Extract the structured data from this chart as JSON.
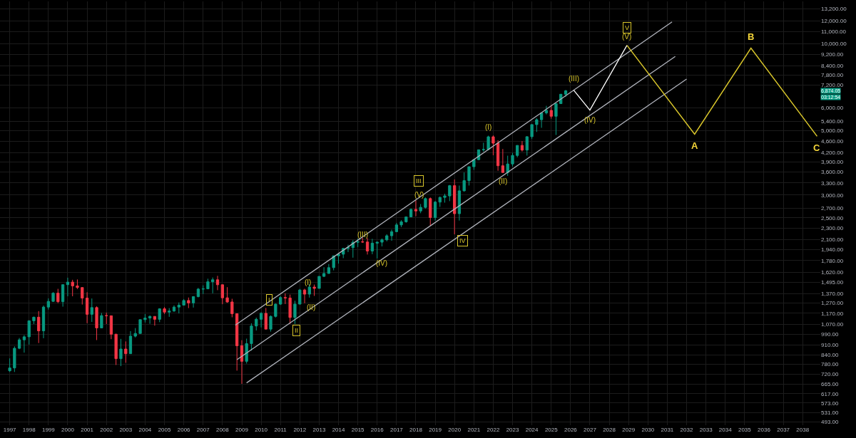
{
  "chart_data": {
    "type": "candlestick",
    "x": [
      "1997-01",
      "1997-04",
      "1997-07",
      "1997-10",
      "1998-01",
      "1998-04",
      "1998-07",
      "1998-10",
      "1999-01",
      "1999-04",
      "1999-07",
      "1999-10",
      "2000-01",
      "2000-04",
      "2000-07",
      "2000-10",
      "2001-01",
      "2001-04",
      "2001-07",
      "2001-10",
      "2002-01",
      "2002-04",
      "2002-07",
      "2002-10",
      "2003-01",
      "2003-04",
      "2003-07",
      "2003-10",
      "2004-01",
      "2004-04",
      "2004-07",
      "2004-10",
      "2005-01",
      "2005-04",
      "2005-07",
      "2005-10",
      "2006-01",
      "2006-04",
      "2006-07",
      "2006-10",
      "2007-01",
      "2007-04",
      "2007-07",
      "2007-10",
      "2008-01",
      "2008-04",
      "2008-07",
      "2008-10",
      "2009-01",
      "2009-04",
      "2009-07",
      "2009-10",
      "2010-01",
      "2010-04",
      "2010-07",
      "2010-10",
      "2011-01",
      "2011-04",
      "2011-07",
      "2011-10",
      "2012-01",
      "2012-04",
      "2012-07",
      "2012-10",
      "2013-01",
      "2013-04",
      "2013-07",
      "2013-10",
      "2014-01",
      "2014-04",
      "2014-07",
      "2014-10",
      "2015-01",
      "2015-04",
      "2015-07",
      "2015-10",
      "2016-01",
      "2016-04",
      "2016-07",
      "2016-10",
      "2017-01",
      "2017-04",
      "2017-07",
      "2017-10",
      "2018-01",
      "2018-04",
      "2018-07",
      "2018-10",
      "2019-01",
      "2019-04",
      "2019-07",
      "2019-10",
      "2020-01",
      "2020-04",
      "2020-07",
      "2020-10",
      "2021-01",
      "2021-04",
      "2021-07",
      "2021-10",
      "2022-01",
      "2022-04",
      "2022-07",
      "2022-10",
      "2023-01",
      "2023-04",
      "2023-07",
      "2023-10",
      "2024-01",
      "2024-04",
      "2024-07",
      "2024-10",
      "2025-01",
      "2025-04",
      "2025-07",
      "2025-10"
    ],
    "ohlc": [
      [
        740,
        817,
        733,
        757
      ],
      [
        757,
        899,
        733,
        885
      ],
      [
        885,
        961,
        879,
        947
      ],
      [
        947,
        983,
        855,
        970
      ],
      [
        970,
        1106,
        912,
        1102
      ],
      [
        1102,
        1139,
        1074,
        1134
      ],
      [
        1134,
        1190,
        923,
        1017
      ],
      [
        1017,
        1244,
        959,
        1229
      ],
      [
        1229,
        1317,
        1205,
        1286
      ],
      [
        1286,
        1383,
        1281,
        1373
      ],
      [
        1373,
        1421,
        1268,
        1283
      ],
      [
        1283,
        1473,
        1233,
        1469
      ],
      [
        1469,
        1553,
        1339,
        1499
      ],
      [
        1499,
        1527,
        1339,
        1455
      ],
      [
        1455,
        1531,
        1419,
        1436
      ],
      [
        1436,
        1436,
        1254,
        1320
      ],
      [
        1320,
        1383,
        1081,
        1160
      ],
      [
        1160,
        1316,
        1092,
        1224
      ],
      [
        1224,
        1236,
        945,
        1041
      ],
      [
        1041,
        1173,
        1040,
        1148
      ],
      [
        1148,
        1176,
        1074,
        1147
      ],
      [
        1147,
        1147,
        952,
        990
      ],
      [
        990,
        994,
        775,
        815
      ],
      [
        815,
        954,
        768,
        880
      ],
      [
        880,
        935,
        789,
        848
      ],
      [
        848,
        1015,
        847,
        975
      ],
      [
        975,
        1040,
        965,
        996
      ],
      [
        996,
        1112,
        996,
        1112
      ],
      [
        1112,
        1163,
        1087,
        1126
      ],
      [
        1126,
        1150,
        1076,
        1141
      ],
      [
        1141,
        1141,
        1060,
        1115
      ],
      [
        1115,
        1217,
        1090,
        1212
      ],
      [
        1212,
        1229,
        1163,
        1181
      ],
      [
        1181,
        1219,
        1137,
        1191
      ],
      [
        1191,
        1246,
        1183,
        1229
      ],
      [
        1229,
        1275,
        1168,
        1248
      ],
      [
        1248,
        1310,
        1245,
        1295
      ],
      [
        1295,
        1326,
        1219,
        1270
      ],
      [
        1270,
        1340,
        1224,
        1336
      ],
      [
        1336,
        1431,
        1327,
        1418
      ],
      [
        1418,
        1461,
        1364,
        1421
      ],
      [
        1421,
        1540,
        1417,
        1503
      ],
      [
        1503,
        1555,
        1371,
        1527
      ],
      [
        1527,
        1576,
        1406,
        1468
      ],
      [
        1468,
        1472,
        1257,
        1323
      ],
      [
        1323,
        1440,
        1272,
        1280
      ],
      [
        1280,
        1313,
        1133,
        1166
      ],
      [
        1166,
        1167,
        741,
        903
      ],
      [
        903,
        944,
        667,
        798
      ],
      [
        798,
        956,
        784,
        919
      ],
      [
        919,
        1080,
        869,
        1057
      ],
      [
        1057,
        1130,
        1020,
        1115
      ],
      [
        1115,
        1180,
        1045,
        1169
      ],
      [
        1169,
        1220,
        1031,
        1031
      ],
      [
        1031,
        1150,
        1011,
        1141
      ],
      [
        1141,
        1263,
        1131,
        1258
      ],
      [
        1258,
        1344,
        1250,
        1326
      ],
      [
        1326,
        1371,
        1259,
        1321
      ],
      [
        1321,
        1357,
        1075,
        1131
      ],
      [
        1131,
        1293,
        1074,
        1258
      ],
      [
        1258,
        1420,
        1258,
        1408
      ],
      [
        1408,
        1422,
        1267,
        1362
      ],
      [
        1362,
        1475,
        1325,
        1441
      ],
      [
        1441,
        1470,
        1343,
        1426
      ],
      [
        1426,
        1570,
        1426,
        1569
      ],
      [
        1569,
        1687,
        1560,
        1606
      ],
      [
        1606,
        1730,
        1604,
        1682
      ],
      [
        1682,
        1849,
        1646,
        1848
      ],
      [
        1848,
        1884,
        1737,
        1872
      ],
      [
        1872,
        1968,
        1814,
        1960
      ],
      [
        1960,
        2019,
        1904,
        1972
      ],
      [
        1972,
        2094,
        1821,
        2059
      ],
      [
        2059,
        2119,
        1981,
        2068
      ],
      [
        2068,
        2135,
        2048,
        2063
      ],
      [
        2063,
        2132,
        1867,
        1920
      ],
      [
        1920,
        2116,
        1872,
        2044
      ],
      [
        2044,
        2072,
        1810,
        2060
      ],
      [
        2060,
        2121,
        1992,
        2099
      ],
      [
        2099,
        2194,
        2074,
        2168
      ],
      [
        2168,
        2278,
        2084,
        2239
      ],
      [
        2239,
        2401,
        2233,
        2363
      ],
      [
        2363,
        2454,
        2322,
        2423
      ],
      [
        2423,
        2519,
        2406,
        2519
      ],
      [
        2519,
        2694,
        2519,
        2674
      ],
      [
        2674,
        2873,
        2533,
        2641
      ],
      [
        2641,
        2791,
        2594,
        2718
      ],
      [
        2718,
        2941,
        2692,
        2914
      ],
      [
        2914,
        2940,
        2347,
        2507
      ],
      [
        2507,
        2860,
        2444,
        2834
      ],
      [
        2834,
        2964,
        2729,
        2942
      ],
      [
        2942,
        3028,
        2822,
        2977
      ],
      [
        2977,
        3248,
        2856,
        3231
      ],
      [
        3231,
        3394,
        2192,
        2585
      ],
      [
        2585,
        3233,
        2447,
        3100
      ],
      [
        3100,
        3588,
        3080,
        3363
      ],
      [
        3363,
        3760,
        3234,
        3756
      ],
      [
        3756,
        3984,
        3662,
        3973
      ],
      [
        3973,
        4302,
        3954,
        4298
      ],
      [
        4298,
        4546,
        4233,
        4308
      ],
      [
        4308,
        4808,
        4278,
        4766
      ],
      [
        4766,
        4819,
        4115,
        4530
      ],
      [
        4530,
        4637,
        3637,
        3785
      ],
      [
        3785,
        4325,
        3584,
        3586
      ],
      [
        3586,
        4101,
        3492,
        3840
      ],
      [
        3840,
        4195,
        3764,
        4109
      ],
      [
        4109,
        4458,
        4048,
        4450
      ],
      [
        4450,
        4607,
        4238,
        4288
      ],
      [
        4288,
        4794,
        4104,
        4770
      ],
      [
        4770,
        5265,
        4683,
        5254
      ],
      [
        5254,
        5524,
        4954,
        5460
      ],
      [
        5460,
        5767,
        5120,
        5762
      ],
      [
        5762,
        6099,
        5696,
        5882
      ],
      [
        5882,
        6147,
        5505,
        5612
      ],
      [
        5612,
        6215,
        4835,
        6205
      ],
      [
        6205,
        6700,
        6200,
        6688
      ],
      [
        6688,
        6920,
        6551,
        6874.05
      ]
    ],
    "colors": [
      "#089981",
      "#089981",
      "#089981",
      "#089981",
      "#089981",
      "#089981",
      "#f23645",
      "#089981",
      "#089981",
      "#089981",
      "#f23645",
      "#089981",
      "#089981",
      "#f23645",
      "#f23645",
      "#f23645",
      "#f23645",
      "#089981",
      "#f23645",
      "#089981",
      "#f23645",
      "#f23645",
      "#f23645",
      "#089981",
      "#f23645",
      "#089981",
      "#089981",
      "#089981",
      "#089981",
      "#089981",
      "#f23645",
      "#089981",
      "#f23645",
      "#089981",
      "#089981",
      "#089981",
      "#089981",
      "#f23645",
      "#089981",
      "#089981",
      "#089981",
      "#089981",
      "#089981",
      "#f23645",
      "#f23645",
      "#f23645",
      "#f23645",
      "#f23645",
      "#f23645",
      "#089981",
      "#089981",
      "#089981",
      "#089981",
      "#f23645",
      "#089981",
      "#089981",
      "#089981",
      "#f23645",
      "#f23645",
      "#089981",
      "#089981",
      "#f23645",
      "#089981",
      "#f23645",
      "#089981",
      "#089981",
      "#089981",
      "#089981",
      "#089981",
      "#089981",
      "#089981",
      "#089981",
      "#089981",
      "#f23645",
      "#f23645",
      "#089981",
      "#089981",
      "#089981",
      "#089981",
      "#089981",
      "#089981",
      "#089981",
      "#089981",
      "#089981",
      "#f23645",
      "#089981",
      "#089981",
      "#f23645",
      "#089981",
      "#089981",
      "#089981",
      "#089981",
      "#f23645",
      "#089981",
      "#089981",
      "#089981",
      "#089981",
      "#089981",
      "#089981",
      "#089981",
      "#f23645",
      "#f23645",
      "#f23645",
      "#089981",
      "#089981",
      "#089981",
      "#f23645",
      "#089981",
      "#089981",
      "#089981",
      "#089981",
      "#089981",
      "#f23645",
      "#089981",
      "#089981",
      "#089981"
    ],
    "series": [
      {
        "type": "line",
        "x": [
          "2008-09",
          "2031-04"
        ],
        "values": [
          1064,
          11890
        ],
        "color": "#b2b5be"
      },
      {
        "type": "line",
        "x": [
          "2008-10",
          "2031-06"
        ],
        "values": [
          809,
          9040
        ],
        "color": "#b2b5be"
      },
      {
        "type": "line",
        "x": [
          "2009-04",
          "2032-01"
        ],
        "values": [
          672,
          7545
        ],
        "color": "#b2b5be"
      },
      {
        "type": "line",
        "x": [
          "2026-03",
          "2027-01",
          "2028-12"
        ],
        "values": [
          6910,
          5894,
          9870
        ],
        "color": "#ffffff"
      },
      {
        "type": "line",
        "x": [
          "2028-12",
          "2032-06",
          "2035-05",
          "2038-10"
        ],
        "values": [
          9870,
          4863,
          9656,
          4785
        ],
        "color": "#d9c62b"
      }
    ],
    "annotations": [
      {
        "text": "I",
        "x": "2010-06",
        "y": 1305
      },
      {
        "text": "II",
        "x": "2011-11",
        "y": 1019
      },
      {
        "text": "III",
        "x": "2018-03",
        "y": 3350
      },
      {
        "text": "IV",
        "x": "2020-06",
        "y": 2079
      },
      {
        "text": "V",
        "x": "2028-12",
        "y": 11350
      },
      {
        "text": "(I)",
        "x": "2012-06",
        "y": 1496
      },
      {
        "text": "(II)",
        "x": "2012-08",
        "y": 1228
      },
      {
        "text": "(III)",
        "x": "2015-04",
        "y": 2183
      },
      {
        "text": "(IV)",
        "x": "2016-04",
        "y": 1743
      },
      {
        "text": "(V)",
        "x": "2018-03",
        "y": 3001
      },
      {
        "text": "(I)",
        "x": "2021-10",
        "y": 4808
      },
      {
        "text": "(II)",
        "x": "2022-07",
        "y": 3584
      },
      {
        "text": "(III)",
        "x": "2026-03",
        "y": 6910
      },
      {
        "text": "(IV)",
        "x": "2027-01",
        "y": 5894
      },
      {
        "text": "(V)",
        "x": "2028-12",
        "y": 9870
      },
      {
        "text": "A",
        "x": "2032-06",
        "y": 4863
      },
      {
        "text": "B",
        "x": "2035-05",
        "y": 9656
      },
      {
        "text": "C",
        "x": "2038-10",
        "y": 4785
      },
      "6,874.05",
      "03:12:54"
    ],
    "log": true,
    "grid": true,
    "xlim": [
      "1996-07-01",
      "2038-12-01"
    ],
    "xticks": [
      "1997",
      "1998",
      "1999",
      "2000",
      "2001",
      "2002",
      "2003",
      "2004",
      "2005",
      "2006",
      "2007",
      "2008",
      "2009",
      "2010",
      "2011",
      "2012",
      "2013",
      "2014",
      "2015",
      "2016",
      "2017",
      "2018",
      "2019",
      "2020",
      "2021",
      "2022",
      "2023",
      "2024",
      "2025",
      "2026",
      "2027",
      "2028",
      "2029",
      "2030",
      "2031",
      "2032",
      "2033",
      "2034",
      "2035",
      "2036",
      "2037",
      "2038"
    ],
    "ylim": [
      480,
      14000
    ],
    "yticks": [
      {
        "value": 13200,
        "label": "13,200.00"
      },
      {
        "value": 12000,
        "label": "12,000.00"
      },
      {
        "value": 11000,
        "label": "11,000.00"
      },
      {
        "value": 10000,
        "label": "10,000.00"
      },
      {
        "value": 9200,
        "label": "9,200.00"
      },
      {
        "value": 8400,
        "label": "8,400.00"
      },
      {
        "value": 7800,
        "label": "7,800.00"
      },
      {
        "value": 7200,
        "label": "7,200.00"
      },
      {
        "value": 6000,
        "label": "6,000.00"
      },
      {
        "value": 5400,
        "label": "5,400.00"
      },
      {
        "value": 5000,
        "label": "5,000.00"
      },
      {
        "value": 4600,
        "label": "4,600.00"
      },
      {
        "value": 4200,
        "label": "4,200.00"
      },
      {
        "value": 3900,
        "label": "3,900.00"
      },
      {
        "value": 3600,
        "label": "3,600.00"
      },
      {
        "value": 3300,
        "label": "3,300.00"
      },
      {
        "value": 3000,
        "label": "3,000.00"
      },
      {
        "value": 2700,
        "label": "2,700.00"
      },
      {
        "value": 2500,
        "label": "2,500.00"
      },
      {
        "value": 2300,
        "label": "2,300.00"
      },
      {
        "value": 2100,
        "label": "2,100.00"
      },
      {
        "value": 1940,
        "label": "1,940.00"
      },
      {
        "value": 1780,
        "label": "1,780.00"
      },
      {
        "value": 1620,
        "label": "1,620.00"
      },
      {
        "value": 1495,
        "label": "1,495.00"
      },
      {
        "value": 1370,
        "label": "1,370.00"
      },
      {
        "value": 1270,
        "label": "1,270.00"
      },
      {
        "value": 1170,
        "label": "1,170.00"
      },
      {
        "value": 1070,
        "label": "1,070.00"
      },
      {
        "value": 990,
        "label": "990.00"
      },
      {
        "value": 910,
        "label": "910.00"
      },
      {
        "value": 840,
        "label": "840.00"
      },
      {
        "value": 780,
        "label": "780.00"
      },
      {
        "value": 720,
        "label": "720.00"
      },
      {
        "value": 665,
        "label": "665.00"
      },
      {
        "value": 617,
        "label": "617.00"
      },
      {
        "value": 573,
        "label": "573.00"
      },
      {
        "value": 531,
        "label": "531.00"
      },
      {
        "value": 493,
        "label": "493.00"
      }
    ]
  }
}
